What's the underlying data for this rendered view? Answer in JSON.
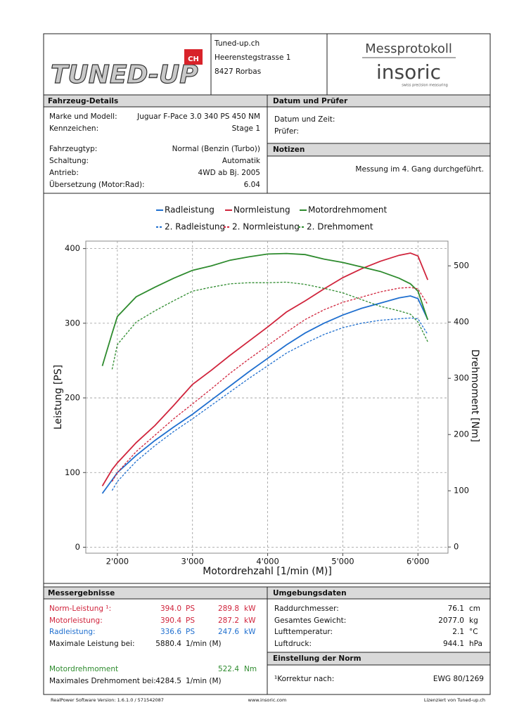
{
  "header": {
    "logo": "TUNED-UP",
    "logo_suffix": "CH",
    "address": [
      "Tuned-up.ch",
      "Heerenstegstrasse 1",
      "8427 Rorbas"
    ],
    "protocol_title": "Messprotokoll",
    "brand": "insoric",
    "brand_tagline": "swiss precision measuring"
  },
  "vehicle": {
    "title": "Fahrzeug-Details",
    "rows": [
      [
        "Marke und Modell:",
        "Juguar F-Pace 3.0 340 PS 450 NM"
      ],
      [
        "Kennzeichen:",
        "Stage 1"
      ],
      [
        "Fahrzeugtyp:",
        "Normal (Benzin (Turbo))"
      ],
      [
        "Schaltung:",
        "Automatik"
      ],
      [
        "Antrieb:",
        "4WD ab Bj. 2005"
      ],
      [
        "Übersetzung (Motor:Rad):",
        "6.04"
      ]
    ]
  },
  "date": {
    "title": "Datum und Prüfer",
    "rows": [
      "Datum und Zeit:",
      "Prüfer:"
    ]
  },
  "notes": {
    "title": "Notizen",
    "text": "Messung im 4. Gang durchgeführt."
  },
  "chart_data": {
    "type": "line",
    "x_label": "Motordrehzahl [1/min (M)]",
    "y_label": "Leistung [PS]",
    "y2_label": "Drehmoment [Nm]",
    "x": [
      1800,
      1930,
      2000,
      2250,
      2500,
      2750,
      3000,
      3250,
      3500,
      3750,
      4000,
      4250,
      4500,
      4750,
      5000,
      5250,
      5500,
      5750,
      5900,
      6000,
      6130
    ],
    "series": [
      {
        "name": "Radleistung",
        "color": "#1f6fcf",
        "style": "solid",
        "values": [
          72,
          90,
          100,
          123,
          143,
          161,
          178,
          197,
          216,
          235,
          253,
          271,
          287,
          300,
          311,
          320,
          327,
          334,
          336.6,
          333,
          305
        ]
      },
      {
        "name": "Normleistung",
        "color": "#d0243c",
        "style": "solid",
        "values": [
          82,
          104,
          113,
          140,
          163,
          190,
          218,
          237,
          257,
          276,
          295,
          315,
          330,
          346,
          361,
          373,
          383,
          391,
          394,
          390,
          358
        ]
      },
      {
        "name": "Motordrehmoment",
        "color": "#2e8b2e",
        "style": "solid",
        "axis": "y2",
        "values": [
          322,
          380,
          410,
          445,
          462,
          478,
          492,
          500,
          510,
          516,
          521,
          522,
          520,
          512,
          506,
          498,
          490,
          478,
          468,
          455,
          404
        ]
      },
      {
        "name": "2. Radleistung",
        "color": "#1f6fcf",
        "style": "dashed",
        "values": [
          null,
          76,
          88,
          115,
          136,
          155,
          172,
          190,
          208,
          226,
          243,
          260,
          273,
          285,
          294,
          300,
          304,
          306,
          307,
          306,
          285
        ]
      },
      {
        "name": "2. Normleistung",
        "color": "#d0243c",
        "style": "dashed",
        "values": [
          null,
          88,
          100,
          128,
          150,
          172,
          192,
          212,
          233,
          252,
          270,
          288,
          305,
          318,
          328,
          335,
          342,
          347,
          348,
          346,
          325
        ]
      },
      {
        "name": "2. Drehmoment",
        "color": "#2e8b2e",
        "style": "dashed",
        "axis": "y2",
        "values": [
          null,
          316,
          360,
          400,
          420,
          438,
          455,
          462,
          468,
          470,
          470,
          471,
          467,
          460,
          452,
          440,
          428,
          420,
          414,
          400,
          365
        ]
      }
    ],
    "xlim": [
      1580,
      6400
    ],
    "xticks": [
      {
        "value": 2000,
        "label": "2'000"
      },
      {
        "value": 3000,
        "label": "3'000"
      },
      {
        "value": 4000,
        "label": "4'000"
      },
      {
        "value": 5000,
        "label": "5'000"
      },
      {
        "value": 6000,
        "label": "6'000"
      }
    ],
    "ylim": [
      -8,
      410
    ],
    "yticks": [
      0,
      100,
      200,
      300,
      400
    ],
    "y2lim": [
      -11,
      544
    ],
    "y2ticks": [
      0,
      100,
      200,
      300,
      400,
      500
    ],
    "grid": true,
    "legend": "top"
  },
  "results": {
    "title": "Messergebnisse",
    "rows": [
      {
        "label": "Norm-Leistung ¹:",
        "value": "394.0",
        "unit": "PS",
        "value2": "289.8",
        "unit2": "kW"
      },
      {
        "label": "Motorleistung:",
        "value": "390.4",
        "unit": "PS",
        "value2": "287.2",
        "unit2": "kW"
      },
      {
        "label": "Radleistung:",
        "value": "336.6",
        "unit": "PS",
        "value2": "247.6",
        "unit2": "kW"
      },
      {
        "label": "Maximale Leistung bei:",
        "value": "5880.4",
        "unit": "1/min (M)"
      },
      {
        "label": "Motordrehmoment",
        "value2": "522.4",
        "unit2": "Nm"
      },
      {
        "label": "Maximales Drehmoment bei:",
        "value": "4284.5",
        "unit": "1/min (M)"
      }
    ]
  },
  "environment": {
    "title": "Umgebungsdaten",
    "rows": [
      {
        "label": "Raddurchmesser:",
        "value": "76.1",
        "unit": "cm"
      },
      {
        "label": "Gesamtes Gewicht:",
        "value": "2077.0",
        "unit": "kg"
      },
      {
        "label": "Lufttemperatur:",
        "value": "2.1",
        "unit": "°C"
      },
      {
        "label": "Luftdruck:",
        "value": "944.1",
        "unit": "hPa"
      }
    ]
  },
  "norm": {
    "title": "Einstellung der Norm",
    "label": "¹Korrektur nach:",
    "value": "EWG 80/1269"
  },
  "footer": {
    "software": "RealPower Software Version: 1.6.1.0 / 571542087",
    "website": "www.insoric.com",
    "license": "Lizenziert von Tuned-up.ch"
  }
}
